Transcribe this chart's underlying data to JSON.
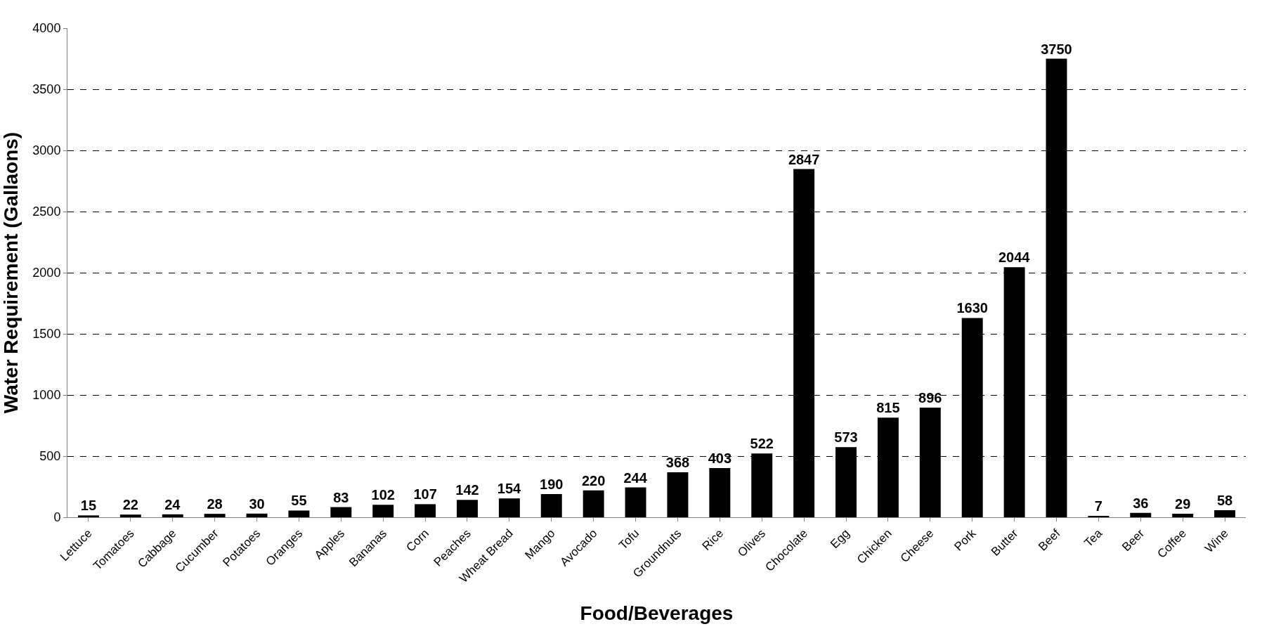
{
  "chart_data": {
    "type": "bar",
    "xlabel": "Food/Beverages",
    "ylabel": "Water Requirement (Gallaons)",
    "categories": [
      "Lettuce",
      "Tomatoes",
      "Cabbage",
      "Cucumber",
      "Potatoes",
      "Oranges",
      "Apples",
      "Bananas",
      "Corn",
      "Peaches",
      "Wheat Bread",
      "Mango",
      "Avocado",
      "Tofu",
      "Groundnuts",
      "Rice",
      "Olives",
      "Chocolate",
      "Egg",
      "Chicken",
      "Cheese",
      "Pork",
      "Butter",
      "Beef",
      "Tea",
      "Beer",
      "Coffee",
      "Wine"
    ],
    "values": [
      15,
      22,
      24,
      28,
      30,
      55,
      83,
      102,
      107,
      142,
      154,
      190,
      220,
      244,
      368,
      403,
      522,
      2847,
      573,
      815,
      896,
      1630,
      2044,
      3750,
      7,
      36,
      29,
      58
    ],
    "color": "#000000",
    "ylim": [
      0,
      4000
    ],
    "yticks": [
      0,
      500,
      1000,
      1500,
      2000,
      2500,
      3000,
      3500,
      4000
    ],
    "grid": "y",
    "data_labels": true
  }
}
